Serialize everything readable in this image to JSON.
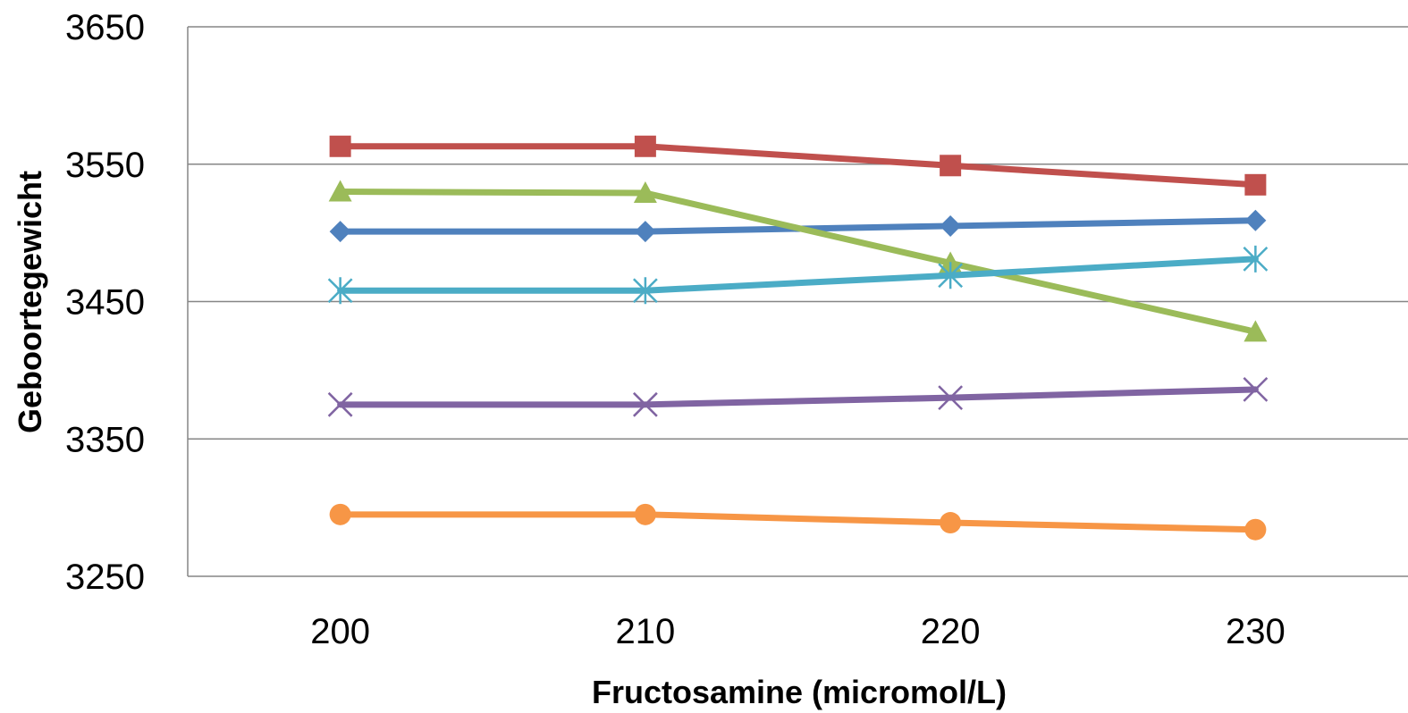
{
  "chart_data": {
    "type": "line",
    "title": "",
    "xlabel": "Fructosamine (micromol/L)",
    "ylabel": "Geboortegewicht",
    "x": [
      200,
      210,
      220,
      230
    ],
    "xlim": [
      195,
      235
    ],
    "ylim": [
      3250,
      3650
    ],
    "yticks": [
      3250,
      3350,
      3450,
      3550,
      3650
    ],
    "grid": true,
    "legend": "none",
    "series": [
      {
        "color": "#4F81BD",
        "marker": "diamond",
        "values": [
          3501,
          3501,
          3505,
          3509
        ]
      },
      {
        "color": "#C0504D",
        "marker": "square",
        "values": [
          3563,
          3563,
          3549,
          3535
        ]
      },
      {
        "color": "#9BBB59",
        "marker": "triangle",
        "values": [
          3530,
          3529,
          3478,
          3428
        ]
      },
      {
        "color": "#8064A2",
        "marker": "x",
        "values": [
          3375,
          3375,
          3380,
          3386
        ]
      },
      {
        "color": "#4BACC6",
        "marker": "star",
        "values": [
          3458,
          3458,
          3469,
          3481
        ]
      },
      {
        "color": "#F79646",
        "marker": "circle",
        "values": [
          3295,
          3295,
          3289,
          3284
        ]
      }
    ]
  }
}
